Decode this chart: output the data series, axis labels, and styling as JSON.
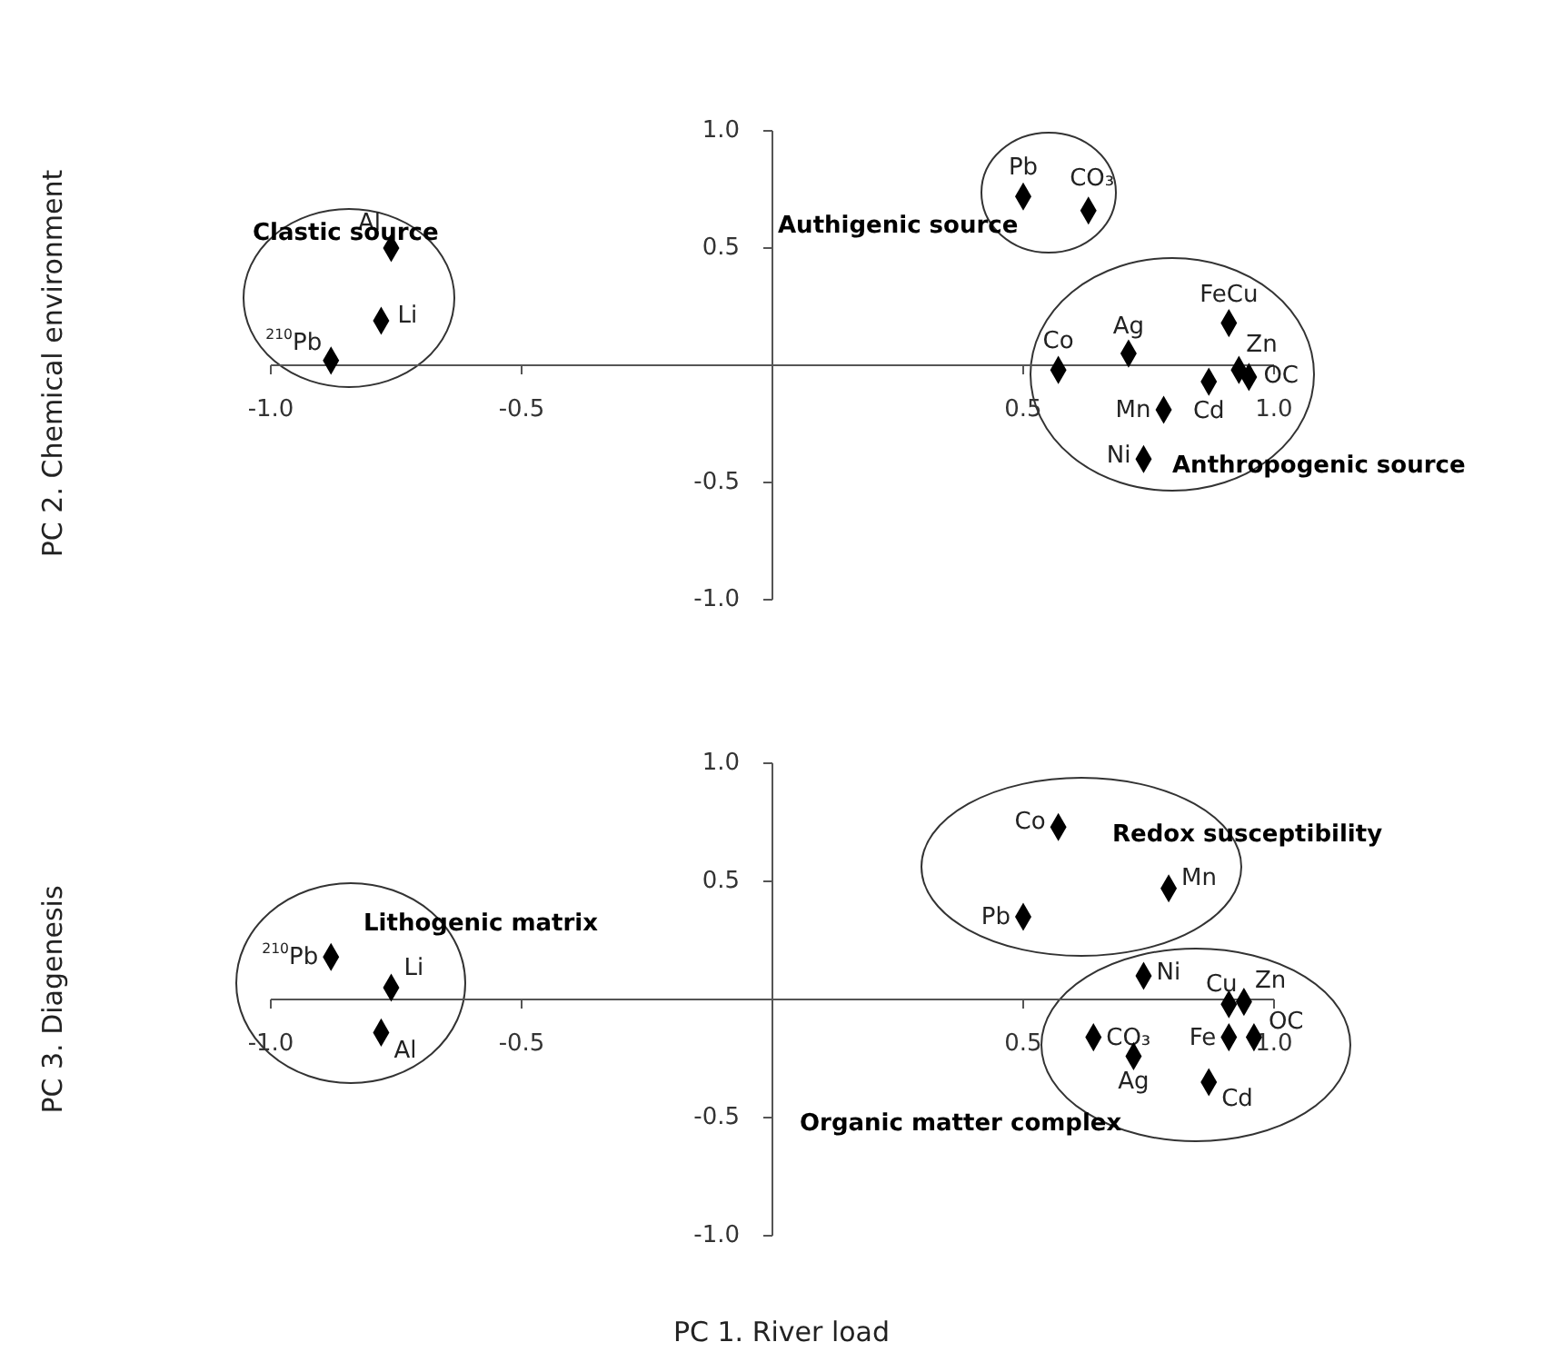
{
  "chart_data": [
    {
      "type": "scatter",
      "ylabel": "PC 2. Chemical environment",
      "marker": "diamond",
      "grid": false,
      "xlim": [
        -1,
        1
      ],
      "ylim": [
        -1,
        1
      ],
      "xticks": [
        {
          "value": -1,
          "label": "-1.0"
        },
        {
          "value": -0.5,
          "label": "-0.5"
        },
        {
          "value": 0.5,
          "label": "0.5"
        },
        {
          "value": 1,
          "label": "1.0"
        }
      ],
      "yticks": [
        {
          "value": 1,
          "label": "1.0"
        },
        {
          "value": 0.5,
          "label": "0.5"
        },
        {
          "value": -0.5,
          "label": "-0.5"
        },
        {
          "value": -1,
          "label": "-1.0"
        }
      ],
      "annotations": [
        "Clastic source",
        "Authigenic source",
        "Anthropogenic source"
      ],
      "series": [
        {
          "name": "Al",
          "color": "#000000",
          "x": [
            -0.76
          ],
          "values": [
            0.5
          ]
        },
        {
          "name": "Li",
          "color": "#000000",
          "x": [
            -0.78
          ],
          "values": [
            0.19
          ]
        },
        {
          "name": "$^{210}$Pb",
          "color": "#000000",
          "x": [
            -0.88
          ],
          "values": [
            0.02
          ]
        },
        {
          "name": "Pb",
          "color": "#000000",
          "x": [
            0.5
          ],
          "values": [
            0.72
          ]
        },
        {
          "name": "CO₃",
          "color": "#000000",
          "x": [
            0.63
          ],
          "values": [
            0.66
          ]
        },
        {
          "name": "Co",
          "color": "#000000",
          "x": [
            0.57
          ],
          "values": [
            -0.02
          ]
        },
        {
          "name": "Ag",
          "color": "#000000",
          "x": [
            0.71
          ],
          "values": [
            0.05
          ]
        },
        {
          "name": "FeCu",
          "color": "#000000",
          "x": [
            0.91
          ],
          "values": [
            0.18
          ]
        },
        {
          "name": "Zn",
          "color": "#000000",
          "x": [
            0.93
          ],
          "values": [
            -0.02
          ]
        },
        {
          "name": "OC",
          "color": "#000000",
          "x": [
            0.95
          ],
          "values": [
            -0.05
          ]
        },
        {
          "name": "Cd",
          "color": "#000000",
          "x": [
            0.87
          ],
          "values": [
            -0.07
          ]
        },
        {
          "name": "Mn",
          "color": "#000000",
          "x": [
            0.78
          ],
          "values": [
            -0.19
          ]
        },
        {
          "name": "Ni",
          "color": "#000000",
          "x": [
            0.74
          ],
          "values": [
            -0.4
          ]
        }
      ]
    },
    {
      "type": "scatter",
      "xlabel": "PC 1. River load",
      "ylabel": "PC 3. Diagenesis",
      "marker": "diamond",
      "grid": false,
      "xlim": [
        -1,
        1
      ],
      "ylim": [
        -1,
        1
      ],
      "xticks": [
        {
          "value": -1,
          "label": "-1.0"
        },
        {
          "value": -0.5,
          "label": "-0.5"
        },
        {
          "value": 0.5,
          "label": "0.5"
        },
        {
          "value": 1,
          "label": "1.0"
        }
      ],
      "yticks": [
        {
          "value": 1,
          "label": "1.0"
        },
        {
          "value": 0.5,
          "label": "0.5"
        },
        {
          "value": -0.5,
          "label": "-0.5"
        },
        {
          "value": -1,
          "label": "-1.0"
        }
      ],
      "annotations": [
        "Lithogenic matrix",
        "Redox susceptibility",
        "Organic matter complex"
      ],
      "series": [
        {
          "name": "$^{210}$Pb",
          "color": "#000000",
          "x": [
            -0.88
          ],
          "values": [
            0.18
          ]
        },
        {
          "name": "Li",
          "color": "#000000",
          "x": [
            -0.76
          ],
          "values": [
            0.05
          ]
        },
        {
          "name": "Al",
          "color": "#000000",
          "x": [
            -0.78
          ],
          "values": [
            -0.14
          ]
        },
        {
          "name": "Co",
          "color": "#000000",
          "x": [
            0.57
          ],
          "values": [
            0.73
          ]
        },
        {
          "name": "Pb",
          "color": "#000000",
          "x": [
            0.5
          ],
          "values": [
            0.35
          ]
        },
        {
          "name": "Mn",
          "color": "#000000",
          "x": [
            0.79
          ],
          "values": [
            0.47
          ]
        },
        {
          "name": "Ni",
          "color": "#000000",
          "x": [
            0.74
          ],
          "values": [
            0.1
          ]
        },
        {
          "name": "Cu",
          "color": "#000000",
          "x": [
            0.91
          ],
          "values": [
            -0.02
          ]
        },
        {
          "name": "Zn",
          "color": "#000000",
          "x": [
            0.94
          ],
          "values": [
            -0.01
          ]
        },
        {
          "name": "Fe",
          "color": "#000000",
          "x": [
            0.91
          ],
          "values": [
            -0.16
          ]
        },
        {
          "name": "OC",
          "color": "#000000",
          "x": [
            0.96
          ],
          "values": [
            -0.16
          ]
        },
        {
          "name": "CO₃",
          "color": "#000000",
          "x": [
            0.64
          ],
          "values": [
            -0.16
          ]
        },
        {
          "name": "Ag",
          "color": "#000000",
          "x": [
            0.72
          ],
          "values": [
            -0.24
          ]
        },
        {
          "name": "Cd",
          "color": "#000000",
          "x": [
            0.87
          ],
          "values": [
            -0.35
          ]
        }
      ]
    }
  ]
}
